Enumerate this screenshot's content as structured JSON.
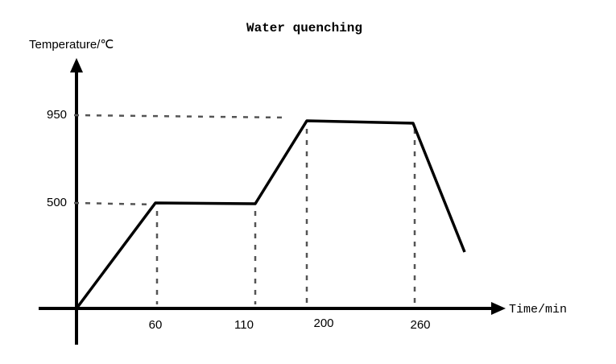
{
  "title": "Water quenching",
  "y_axis": {
    "label": "Temperature/℃",
    "labels": [
      950,
      500
    ]
  },
  "x_axis": {
    "label": "Time/min",
    "labels": [
      60,
      110,
      200,
      260
    ]
  }
}
